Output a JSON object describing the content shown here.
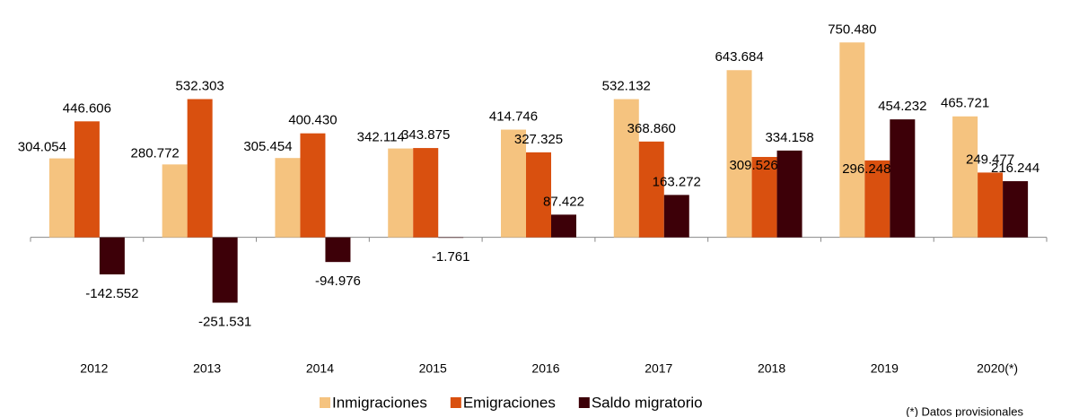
{
  "chart_data": {
    "type": "bar",
    "categories": [
      "2012",
      "2013",
      "2014",
      "2015",
      "2016",
      "2017",
      "2018",
      "2019",
      "2020(*)"
    ],
    "series": [
      {
        "name": "Inmigraciones",
        "color": "#f5c37f",
        "values": [
          304054,
          280772,
          305454,
          342114,
          414746,
          532132,
          643684,
          750480,
          465721
        ],
        "value_labels": [
          "304.054",
          "280.772",
          "305.454",
          "342.114",
          "414.746",
          "532.132",
          "643.684",
          "750.480",
          "465.721"
        ]
      },
      {
        "name": "Emigraciones",
        "color": "#d9500f",
        "values": [
          446606,
          532303,
          400430,
          343875,
          327325,
          368860,
          309526,
          296248,
          249477
        ],
        "value_labels": [
          "446.606",
          "532.303",
          "400.430",
          "343.875",
          "327.325",
          "368.860",
          "309.526",
          "296.248",
          "249.477"
        ]
      },
      {
        "name": "Saldo migratorio",
        "color": "#3d0008",
        "values": [
          -142552,
          -251531,
          -94976,
          -1761,
          87422,
          163272,
          334158,
          454232,
          216244
        ],
        "value_labels": [
          "-142.552",
          "-251.531",
          "-94.976",
          "-1.761",
          "87.422",
          "163.272",
          "334.158",
          "454.232",
          "216.244"
        ]
      }
    ],
    "ylim": [
      -450000,
      900000
    ],
    "legend": "bottom",
    "note": "(*) Datos provisionales"
  }
}
